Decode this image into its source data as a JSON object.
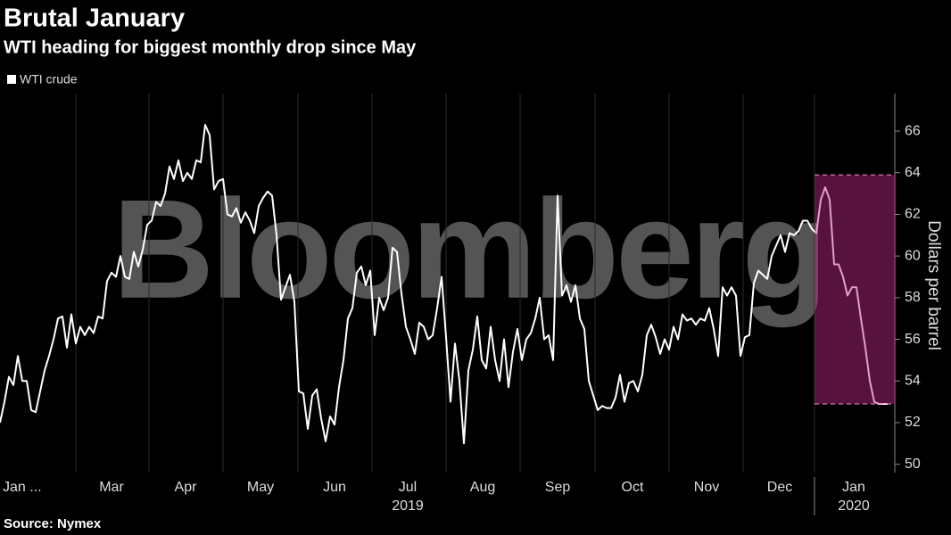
{
  "chart_data": {
    "type": "line",
    "title": "Brutal January",
    "subtitle": "WTI heading for biggest monthly drop since May",
    "source": "Source: Nymex",
    "watermark": "Bloomberg",
    "y_label": "Dollars per barrel",
    "series": [
      {
        "name": "WTI crude",
        "color": "#ffffff",
        "values": [
          52.0,
          53.0,
          54.2,
          53.8,
          55.2,
          54.0,
          54.0,
          52.6,
          52.5,
          53.5,
          54.5,
          55.2,
          56.0,
          57.0,
          57.1,
          55.6,
          57.2,
          55.8,
          56.6,
          56.2,
          56.6,
          56.3,
          57.1,
          57.0,
          58.8,
          59.2,
          59.0,
          60.0,
          59.0,
          58.9,
          60.2,
          59.5,
          60.3,
          61.5,
          61.7,
          62.6,
          62.4,
          63.0,
          64.3,
          63.7,
          64.6,
          63.6,
          64.0,
          63.7,
          64.6,
          64.5,
          66.3,
          65.8,
          63.2,
          63.6,
          63.7,
          62.0,
          61.9,
          62.3,
          61.6,
          62.1,
          61.7,
          61.1,
          62.4,
          62.8,
          63.1,
          62.9,
          61.0,
          57.9,
          58.5,
          59.1,
          57.8,
          53.5,
          53.4,
          51.7,
          53.3,
          53.6,
          52.2,
          51.1,
          52.3,
          51.9,
          53.7,
          55.0,
          57.0,
          57.5,
          59.2,
          59.5,
          58.6,
          59.3,
          56.2,
          58.0,
          57.4,
          58.0,
          60.4,
          60.2,
          58.2,
          56.6,
          56.0,
          55.3,
          56.8,
          56.6,
          56.0,
          56.2,
          57.5,
          59.0,
          56.1,
          53.0,
          55.8,
          54.0,
          51.0,
          54.5,
          55.5,
          57.1,
          55.0,
          54.6,
          56.6,
          55.0,
          54.0,
          56.0,
          53.7,
          55.4,
          56.5,
          55.0,
          56.0,
          56.3,
          57.0,
          58.0,
          56.0,
          56.2,
          55.0,
          62.9,
          58.1,
          58.6,
          57.8,
          58.6,
          57.0,
          56.5,
          54.0,
          53.3,
          52.6,
          52.8,
          52.7,
          52.7,
          53.2,
          54.3,
          53.0,
          53.9,
          54.0,
          53.5,
          54.3,
          56.2,
          56.7,
          56.1,
          55.3,
          56.0,
          55.5,
          56.6,
          56.0,
          57.2,
          56.9,
          57.0,
          56.7,
          57.0,
          56.9,
          57.5,
          56.5,
          55.2,
          58.5,
          58.1,
          58.5,
          58.1,
          55.2,
          56.1,
          56.2,
          58.7,
          59.3,
          59.1,
          58.9,
          60.0,
          60.5,
          61.0,
          60.2,
          61.1,
          61.0,
          61.2,
          61.7,
          61.7,
          61.3,
          61.1,
          62.7,
          63.3,
          62.7,
          59.6,
          59.6,
          59.0,
          58.1,
          58.5,
          58.5,
          57.0,
          55.6,
          54.0,
          53.0,
          52.9,
          52.9,
          52.9
        ]
      }
    ],
    "xlim": [
      0,
      200.6
    ],
    "xticks": [
      {
        "value": 6,
        "label": "Jan ..."
      },
      {
        "value": 25,
        "label": "Mar"
      },
      {
        "value": 41.6,
        "label": "Apr"
      },
      {
        "value": 58.4,
        "label": "May"
      },
      {
        "value": 75,
        "label": "Jun"
      },
      {
        "value": 91.4,
        "label": "Jul"
      },
      {
        "value": 108.2,
        "label": "Aug"
      },
      {
        "value": 125,
        "label": "Sep"
      },
      {
        "value": 141.8,
        "label": "Oct"
      },
      {
        "value": 158.4,
        "label": "Nov"
      },
      {
        "value": 174.8,
        "label": "Dec"
      },
      {
        "value": 191.4,
        "label": "Jan"
      }
    ],
    "xyears": [
      {
        "value": 91.4,
        "label": "2019"
      },
      {
        "value": 191.4,
        "label": "2020"
      }
    ],
    "year_break": 182.6,
    "xgrid": [
      17,
      33.4,
      50,
      66.8,
      83.4,
      100,
      116.6,
      133.4,
      150,
      166.6,
      182.6
    ],
    "ylim": [
      49.6,
      67.8
    ],
    "yticks": [
      50,
      52,
      54,
      56,
      58,
      60,
      62,
      64,
      66
    ],
    "highlight": {
      "x": [
        182.6,
        200.6
      ],
      "y": [
        52.9,
        63.9
      ],
      "color": "#c2288a"
    },
    "grid": true
  }
}
